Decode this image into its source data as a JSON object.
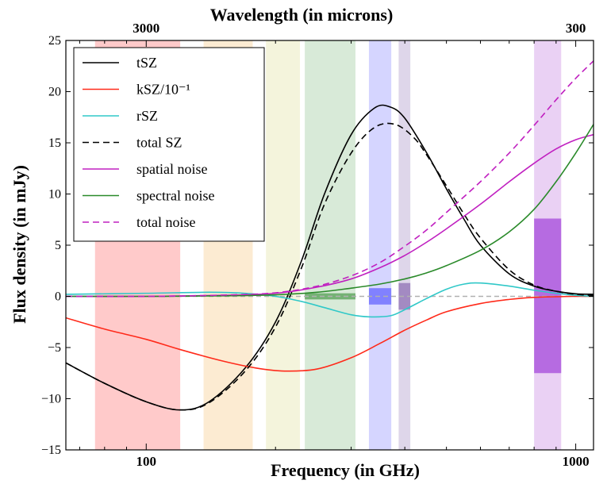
{
  "chart_data": {
    "type": "line",
    "xlabel": "Frequency (in GHz)",
    "ylabel": "Flux density (in mJy)",
    "top_xlabel": "Wavelength (in microns)",
    "x_scale": "log",
    "xlim": [
      65,
      1100
    ],
    "ylim": [
      -15,
      25
    ],
    "yticks": [
      -15,
      -10,
      -5,
      0,
      5,
      10,
      15,
      20,
      25
    ],
    "x_tick_labels": [
      {
        "value": 100,
        "label": "100"
      },
      {
        "value": 1000,
        "label": "1000"
      }
    ],
    "top_tick_labels": [
      {
        "value": 100,
        "label": "3000"
      },
      {
        "value": 1000,
        "label": "300"
      }
    ],
    "legend_position": "top-left",
    "bands": [
      {
        "range": [
          76,
          120
        ],
        "color": "#ff6666"
      },
      {
        "range": [
          136,
          177
        ],
        "color": "#f7c77d"
      },
      {
        "range": [
          190,
          228
        ],
        "color": "#e0e09a"
      },
      {
        "range": [
          234,
          307
        ],
        "color": "#8fc48f"
      },
      {
        "range": [
          330,
          372
        ],
        "color": "#8888ff"
      },
      {
        "range": [
          387,
          412
        ],
        "color": "#a08ac4"
      },
      {
        "range": [
          800,
          925
        ],
        "color": "#c47ae0"
      }
    ],
    "noise_boxes": [
      {
        "range": [
          234,
          307
        ],
        "y": [
          -0.3,
          0.3
        ],
        "color": "#4a9a4a"
      },
      {
        "range": [
          330,
          372
        ],
        "y": [
          -0.8,
          0.8
        ],
        "color": "#5c5cff"
      },
      {
        "range": [
          387,
          412
        ],
        "y": [
          -1.3,
          1.3
        ],
        "color": "#8a6ab0"
      },
      {
        "range": [
          800,
          925
        ],
        "y": [
          -7.5,
          7.6
        ],
        "color": "#a040d8"
      }
    ],
    "series": [
      {
        "name": "tSZ",
        "color": "#000000",
        "dash": "solid",
        "x": [
          65,
          80,
          100,
          120,
          140,
          170,
          200,
          230,
          260,
          300,
          340,
          370,
          400,
          450,
          500,
          550,
          600,
          700,
          800,
          900,
          1000,
          1100
        ],
        "y": [
          -6.5,
          -8.5,
          -10.3,
          -11.1,
          -10.3,
          -7,
          -2.5,
          3.5,
          10,
          15.8,
          18.4,
          18.5,
          17.4,
          14,
          10.5,
          7.5,
          5,
          2.2,
          1,
          0.5,
          0.25,
          0.2
        ]
      },
      {
        "name": "kSZ/10⁻¹",
        "color": "#ff2a1a",
        "dash": "solid",
        "x": [
          65,
          80,
          100,
          120,
          150,
          180,
          210,
          250,
          300,
          350,
          400,
          450,
          500,
          600,
          700,
          800,
          1000,
          1100
        ],
        "y": [
          -2.1,
          -3.2,
          -4.2,
          -5.2,
          -6.3,
          -7,
          -7.3,
          -7.1,
          -6,
          -4.6,
          -3.3,
          -2.3,
          -1.5,
          -0.7,
          -0.3,
          -0.1,
          0,
          0
        ]
      },
      {
        "name": "rSZ",
        "color": "#30c8c8",
        "dash": "solid",
        "x": [
          65,
          100,
          140,
          170,
          200,
          230,
          260,
          300,
          330,
          370,
          400,
          450,
          500,
          550,
          600,
          700,
          800,
          900,
          1000,
          1100
        ],
        "y": [
          0.2,
          0.3,
          0.4,
          0.3,
          0,
          -0.5,
          -1.1,
          -1.8,
          -2,
          -1.9,
          -1.3,
          -0.2,
          0.7,
          1.2,
          1.3,
          1,
          0.6,
          0.3,
          0.1,
          0
        ]
      },
      {
        "name": "total SZ",
        "color": "#000000",
        "dash": "dashed",
        "x": [
          65,
          80,
          100,
          120,
          140,
          170,
          200,
          230,
          260,
          300,
          340,
          380,
          420,
          450,
          500,
          550,
          600,
          700,
          800,
          900,
          1000,
          1100
        ],
        "y": [
          -6.5,
          -8.5,
          -10.3,
          -11.1,
          -10.4,
          -7.3,
          -3,
          2.8,
          9,
          14,
          16.5,
          16.8,
          15.5,
          13.8,
          10.8,
          8,
          5.7,
          2.6,
          1.1,
          0.5,
          0.2,
          0.1
        ]
      },
      {
        "name": "spatial noise",
        "color": "#c020c0",
        "dash": "solid",
        "x": [
          65,
          100,
          150,
          200,
          250,
          300,
          350,
          400,
          450,
          500,
          600,
          700,
          800,
          900,
          1000,
          1100
        ],
        "y": [
          0,
          0,
          0.1,
          0.3,
          0.9,
          1.7,
          2.8,
          4,
          5.3,
          6.6,
          9,
          11.2,
          13,
          14.4,
          15.3,
          15.8
        ]
      },
      {
        "name": "spectral noise",
        "color": "#2a8a2a",
        "dash": "solid",
        "x": [
          65,
          100,
          150,
          200,
          250,
          300,
          350,
          400,
          450,
          500,
          600,
          700,
          800,
          900,
          1000,
          1100
        ],
        "y": [
          0,
          0,
          0.05,
          0.15,
          0.4,
          0.8,
          1.2,
          1.7,
          2.3,
          3,
          4.5,
          6.3,
          8.5,
          11.2,
          14,
          16.8
        ]
      },
      {
        "name": "total noise",
        "color": "#c020c0",
        "dash": "dashed",
        "x": [
          65,
          100,
          150,
          200,
          250,
          300,
          350,
          400,
          450,
          500,
          600,
          700,
          800,
          900,
          1000,
          1100
        ],
        "y": [
          0,
          0,
          0.12,
          0.35,
          1,
          2,
          3.3,
          4.9,
          6.5,
          8.2,
          11.2,
          14,
          16.7,
          19.2,
          21.3,
          23
        ]
      }
    ]
  }
}
